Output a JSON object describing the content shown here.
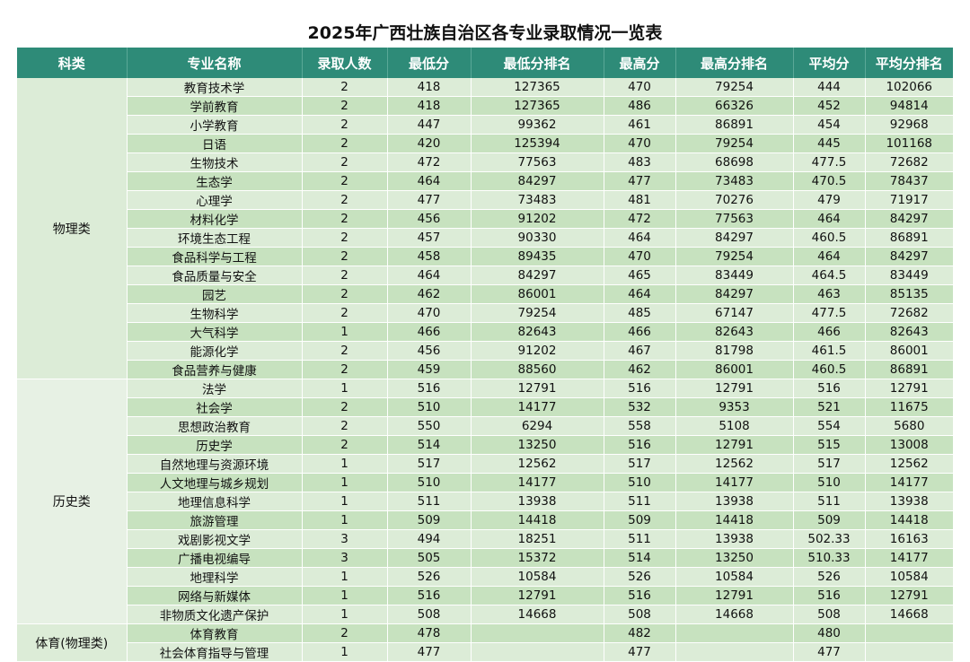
{
  "title": "2025年广西壮族自治区各专业录取情况一览表",
  "headers": [
    "科类",
    "专业名称",
    "录取人数",
    "最低分",
    "最低分排名",
    "最高分",
    "最高分排名",
    "平均分",
    "平均分排名"
  ],
  "groups": [
    {
      "name": "物理类",
      "rows": [
        [
          "教育技术学",
          "2",
          "418",
          "127365",
          "470",
          "79254",
          "444",
          "102066"
        ],
        [
          "学前教育",
          "2",
          "418",
          "127365",
          "486",
          "66326",
          "452",
          "94814"
        ],
        [
          "小学教育",
          "2",
          "447",
          "99362",
          "461",
          "86891",
          "454",
          "92968"
        ],
        [
          "日语",
          "2",
          "420",
          "125394",
          "470",
          "79254",
          "445",
          "101168"
        ],
        [
          "生物技术",
          "2",
          "472",
          "77563",
          "483",
          "68698",
          "477.5",
          "72682"
        ],
        [
          "生态学",
          "2",
          "464",
          "84297",
          "477",
          "73483",
          "470.5",
          "78437"
        ],
        [
          "心理学",
          "2",
          "477",
          "73483",
          "481",
          "70276",
          "479",
          "71917"
        ],
        [
          "材料化学",
          "2",
          "456",
          "91202",
          "472",
          "77563",
          "464",
          "84297"
        ],
        [
          "环境生态工程",
          "2",
          "457",
          "90330",
          "464",
          "84297",
          "460.5",
          "86891"
        ],
        [
          "食品科学与工程",
          "2",
          "458",
          "89435",
          "470",
          "79254",
          "464",
          "84297"
        ],
        [
          "食品质量与安全",
          "2",
          "464",
          "84297",
          "465",
          "83449",
          "464.5",
          "83449"
        ],
        [
          "园艺",
          "2",
          "462",
          "86001",
          "464",
          "84297",
          "463",
          "85135"
        ],
        [
          "生物科学",
          "2",
          "470",
          "79254",
          "485",
          "67147",
          "477.5",
          "72682"
        ],
        [
          "大气科学",
          "1",
          "466",
          "82643",
          "466",
          "82643",
          "466",
          "82643"
        ],
        [
          "能源化学",
          "2",
          "456",
          "91202",
          "467",
          "81798",
          "461.5",
          "86001"
        ],
        [
          "食品营养与健康",
          "2",
          "459",
          "88560",
          "462",
          "86001",
          "460.5",
          "86891"
        ]
      ]
    },
    {
      "name": "历史类",
      "rows": [
        [
          "法学",
          "1",
          "516",
          "12791",
          "516",
          "12791",
          "516",
          "12791"
        ],
        [
          "社会学",
          "2",
          "510",
          "14177",
          "532",
          "9353",
          "521",
          "11675"
        ],
        [
          "思想政治教育",
          "2",
          "550",
          "6294",
          "558",
          "5108",
          "554",
          "5680"
        ],
        [
          "历史学",
          "2",
          "514",
          "13250",
          "516",
          "12791",
          "515",
          "13008"
        ],
        [
          "自然地理与资源环境",
          "1",
          "517",
          "12562",
          "517",
          "12562",
          "517",
          "12562"
        ],
        [
          "人文地理与城乡规划",
          "1",
          "510",
          "14177",
          "510",
          "14177",
          "510",
          "14177"
        ],
        [
          "地理信息科学",
          "1",
          "511",
          "13938",
          "511",
          "13938",
          "511",
          "13938"
        ],
        [
          "旅游管理",
          "1",
          "509",
          "14418",
          "509",
          "14418",
          "509",
          "14418"
        ],
        [
          "戏剧影视文学",
          "3",
          "494",
          "18251",
          "511",
          "13938",
          "502.33",
          "16163"
        ],
        [
          "广播电视编导",
          "3",
          "505",
          "15372",
          "514",
          "13250",
          "510.33",
          "14177"
        ],
        [
          "地理科学",
          "1",
          "526",
          "10584",
          "526",
          "10584",
          "526",
          "10584"
        ],
        [
          "网络与新媒体",
          "1",
          "516",
          "12791",
          "516",
          "12791",
          "516",
          "12791"
        ],
        [
          "非物质文化遗产保护",
          "1",
          "508",
          "14668",
          "508",
          "14668",
          "508",
          "14668"
        ]
      ]
    },
    {
      "name": "体育(物理类)",
      "rows": [
        [
          "体育教育",
          "2",
          "478",
          "",
          "482",
          "",
          "480",
          ""
        ],
        [
          "社会体育指导与管理",
          "1",
          "477",
          "",
          "477",
          "",
          "477",
          ""
        ]
      ]
    }
  ],
  "colors": {
    "header_bg": "#2e8b78",
    "row_light": "#dcecd7",
    "row_dark": "#c7e2bf"
  }
}
